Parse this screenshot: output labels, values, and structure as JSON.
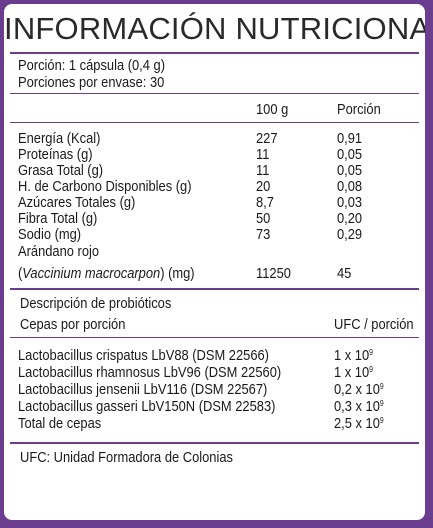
{
  "title": "INFORMACIÓN NUTRICIONAL",
  "serving": {
    "portion": "Porción: 1 cápsula (0,4 g)",
    "servings_per_container": "Porciones por envase:  30"
  },
  "columns": {
    "per_100g": "100 g",
    "per_portion": "Porción"
  },
  "nutrients": [
    {
      "name": "Energía (Kcal)",
      "per_100g": "227",
      "per_portion": "0,91"
    },
    {
      "name": "Proteínas (g)",
      "per_100g": "11",
      "per_portion": "0,05"
    },
    {
      "name": "Grasa Total (g)",
      "per_100g": "11",
      "per_portion": "0,05"
    },
    {
      "name": "H. de Carbono Disponibles (g)",
      "per_100g": "20",
      "per_portion": "0,08"
    },
    {
      "name": "Azúcares Totales (g)",
      "per_100g": "8,7",
      "per_portion": "0,03"
    },
    {
      "name": "Fibra Total (g)",
      "per_100g": "50",
      "per_portion": "0,20"
    },
    {
      "name": "Sodio (mg)",
      "per_100g": "73",
      "per_portion": "0,29"
    }
  ],
  "cranberry": {
    "name_line1": "Arándano rojo",
    "name_open": "(",
    "name_latin": "Vaccinium macrocarpon",
    "name_unit": ") (mg)",
    "per_100g": "11250",
    "per_portion": "45"
  },
  "probiotics": {
    "heading": "Descripción de probióticos",
    "strains_label": "Cepas por porción",
    "ufc_label": "UFC / porción",
    "strains": [
      {
        "name": "Lactobacillus crispatus LbV88 (DSM 22566)",
        "base": "1 x 10",
        "exp": "9"
      },
      {
        "name": "Lactobacillus rhamnosus LbV96 (DSM 22560)",
        "base": "1 x 10",
        "exp": "9"
      },
      {
        "name": "Lactobacillus jensenii LbV116 (DSM 22567)",
        "base": "0,2 x 10",
        "exp": "9"
      },
      {
        "name": "Lactobacillus gasseri LbV150N (DSM 22583)",
        "base": "0,3 x 10",
        "exp": "9"
      },
      {
        "name": "Total de cepas",
        "base": "2,5 x 10",
        "exp": "9"
      }
    ]
  },
  "footnote": "UFC: Unidad Formadora de Colonias",
  "colors": {
    "border": "#6a3d8f",
    "text": "#1a1a1a",
    "background": "#ffffff"
  }
}
